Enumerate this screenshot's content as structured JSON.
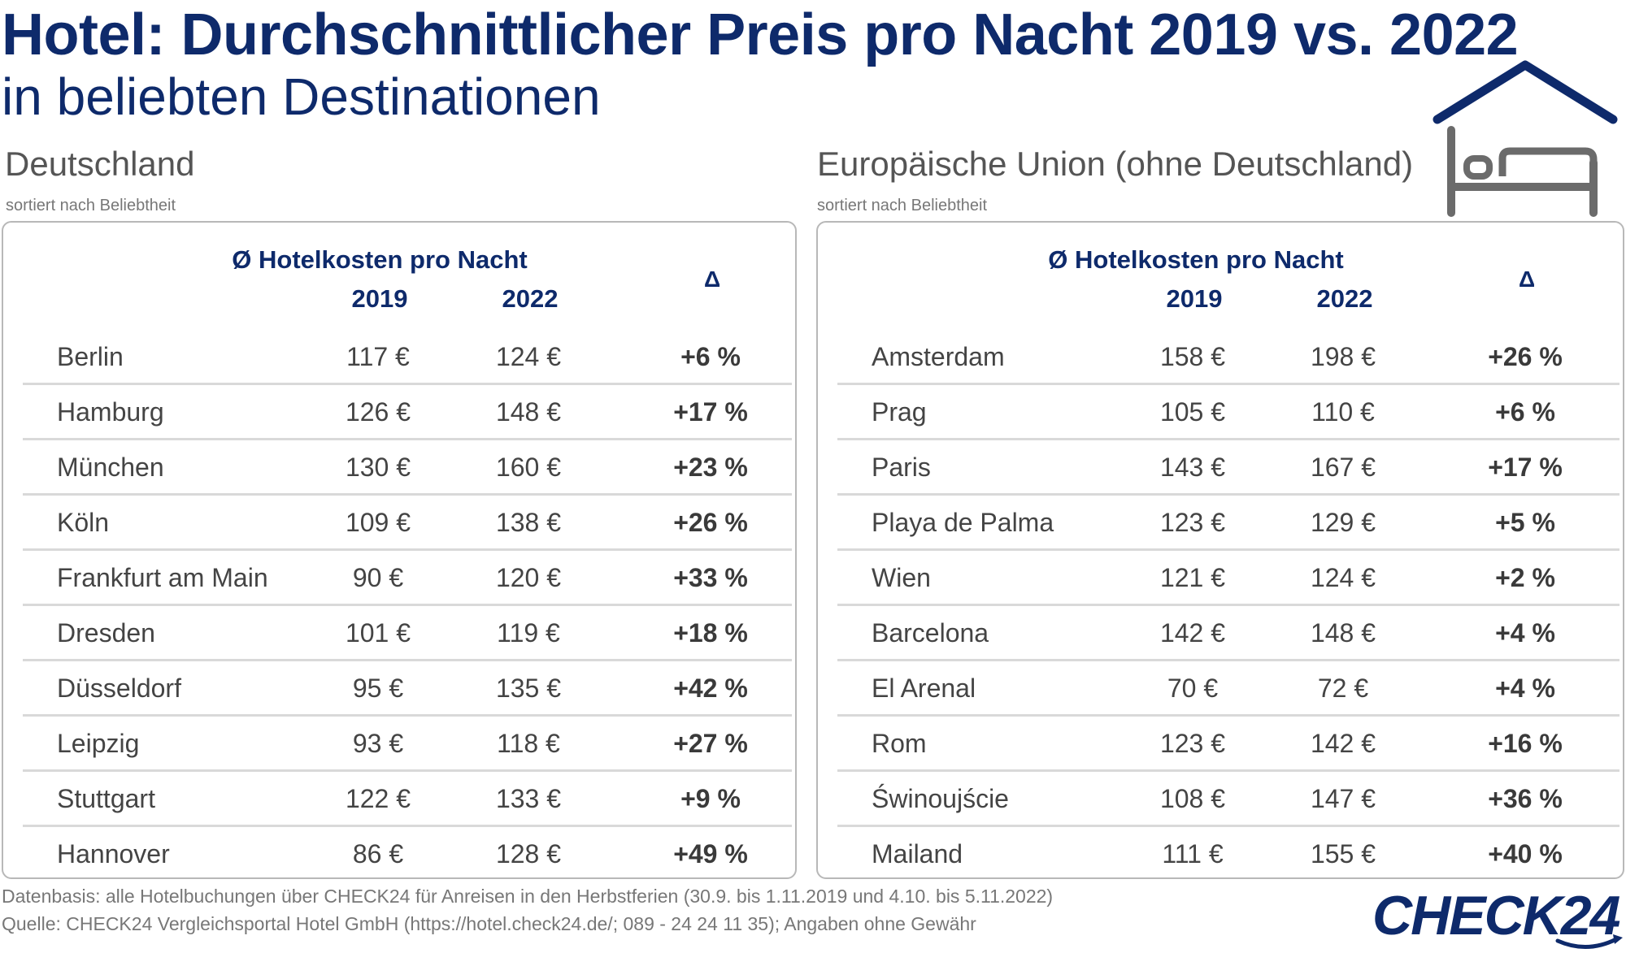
{
  "title": "Hotel: Durchschnittlicher Preis pro Nacht 2019 vs. 2022",
  "subtitle": "in beliebten Destinationen",
  "header": {
    "cost_label": "Ø Hotelkosten pro Nacht",
    "year1": "2019",
    "year2": "2022",
    "delta": "Δ"
  },
  "chart_data": [
    {
      "type": "table",
      "title": "Deutschland",
      "note": "sortiert nach Beliebtheit",
      "columns": [
        "",
        "2019",
        "2022",
        "Δ"
      ],
      "rows": [
        {
          "city": "Berlin",
          "v2019": "117 €",
          "v2022": "124 €",
          "delta": "+6 %"
        },
        {
          "city": "Hamburg",
          "v2019": "126 €",
          "v2022": "148 €",
          "delta": "+17 %"
        },
        {
          "city": "München",
          "v2019": "130 €",
          "v2022": "160 €",
          "delta": "+23 %"
        },
        {
          "city": "Köln",
          "v2019": "109 €",
          "v2022": "138 €",
          "delta": "+26 %"
        },
        {
          "city": "Frankfurt am Main",
          "v2019": "90 €",
          "v2022": "120 €",
          "delta": "+33 %"
        },
        {
          "city": "Dresden",
          "v2019": "101 €",
          "v2022": "119 €",
          "delta": "+18 %"
        },
        {
          "city": "Düsseldorf",
          "v2019": "95 €",
          "v2022": "135 €",
          "delta": "+42 %"
        },
        {
          "city": "Leipzig",
          "v2019": "93 €",
          "v2022": "118 €",
          "delta": "+27 %"
        },
        {
          "city": "Stuttgart",
          "v2019": "122 €",
          "v2022": "133 €",
          "delta": "+9 %"
        },
        {
          "city": "Hannover",
          "v2019": "86 €",
          "v2022": "128 €",
          "delta": "+49 %"
        }
      ]
    },
    {
      "type": "table",
      "title": "Europäische Union (ohne Deutschland)",
      "note": "sortiert nach Beliebtheit",
      "columns": [
        "",
        "2019",
        "2022",
        "Δ"
      ],
      "rows": [
        {
          "city": "Amsterdam",
          "v2019": "158 €",
          "v2022": "198 €",
          "delta": "+26 %"
        },
        {
          "city": "Prag",
          "v2019": "105 €",
          "v2022": "110 €",
          "delta": "+6 %"
        },
        {
          "city": "Paris",
          "v2019": "143 €",
          "v2022": "167 €",
          "delta": "+17 %"
        },
        {
          "city": "Playa de Palma",
          "v2019": "123 €",
          "v2022": "129 €",
          "delta": "+5 %"
        },
        {
          "city": "Wien",
          "v2019": "121 €",
          "v2022": "124 €",
          "delta": "+2 %"
        },
        {
          "city": "Barcelona",
          "v2019": "142 €",
          "v2022": "148 €",
          "delta": "+4 %"
        },
        {
          "city": "El Arenal",
          "v2019": "70 €",
          "v2022": "72 €",
          "delta": "+4 %"
        },
        {
          "city": "Rom",
          "v2019": "123 €",
          "v2022": "142 €",
          "delta": "+16 %"
        },
        {
          "city": "Świnoujście",
          "v2019": "108 €",
          "v2022": "147 €",
          "delta": "+36 %"
        },
        {
          "city": "Mailand",
          "v2019": "111 €",
          "v2022": "155 €",
          "delta": "+40 %"
        }
      ]
    }
  ],
  "footnotes": {
    "line1": "Datenbasis: alle Hotelbuchungen über CHECK24 für Anreisen in den Herbstferien (30.9. bis 1.11.2019 und 4.10. bis 5.11.2022)",
    "line2": "Quelle: CHECK24 Vergleichsportal Hotel GmbH (https://hotel.check24.de/; 089 - 24 24 11 35); Angaben ohne Gewähr"
  },
  "logo_text": "CHECK24",
  "icons": {
    "bed": "bed-under-roof-icon"
  },
  "colors": {
    "title": "#0e2a6b",
    "text": "#444444",
    "divider": "#d9d9d9",
    "border": "#b8b8b8"
  }
}
